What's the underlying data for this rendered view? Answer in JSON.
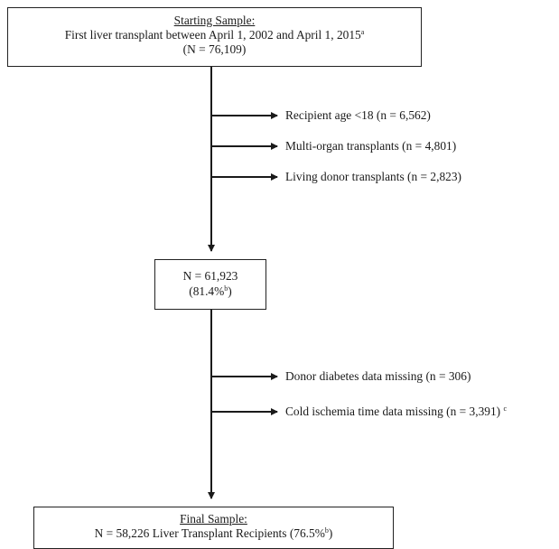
{
  "start_box": {
    "title": "Starting Sample:",
    "line1": "First liver transplant between April 1, 2002 and April 1, 2015",
    "line1_sup": "a",
    "line2": "(N = 76,109)"
  },
  "exclusions_1": [
    {
      "label": "Recipient age <18 (n = 6,562)"
    },
    {
      "label": "Multi-organ transplants (n = 4,801)"
    },
    {
      "label": "Living donor transplants (n = 2,823)"
    }
  ],
  "mid_box": {
    "line1": "N = 61,923",
    "line2_prefix": "(81.4%",
    "line2_sup": "b",
    "line2_suffix": ")"
  },
  "exclusions_2": [
    {
      "label": "Donor diabetes data missing (n = 306)",
      "sup": ""
    },
    {
      "label": "Cold ischemia time data missing (n = 3,391) ",
      "sup": "c"
    }
  ],
  "final_box": {
    "title": "Final Sample:",
    "line1_prefix": "N = 58,226 Liver Transplant Recipients (76.5%",
    "line1_sup": "b",
    "line1_suffix": ")"
  }
}
